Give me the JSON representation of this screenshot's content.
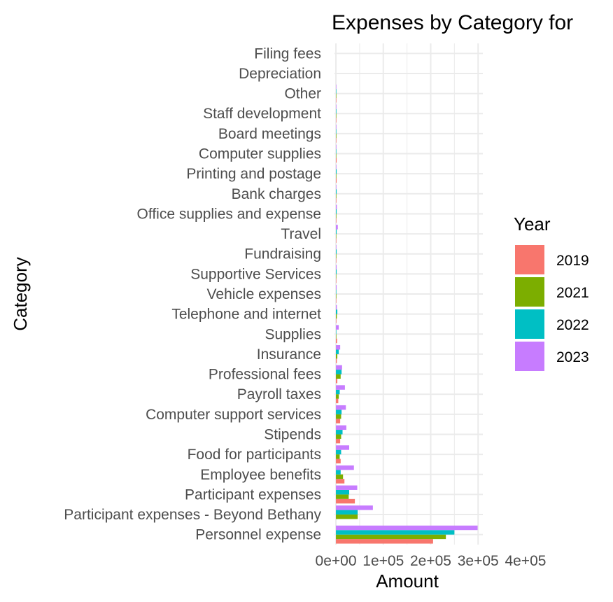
{
  "chart_data": {
    "type": "bar",
    "orientation": "horizontal",
    "title": "Expenses by Category for",
    "xlabel": "Amount",
    "ylabel": "Category",
    "xlim": [
      -3000,
      310000
    ],
    "x_ticks": [
      0,
      100000,
      200000,
      300000,
      400000
    ],
    "x_tick_labels": [
      "0e+00",
      "1e+05",
      "2e+05",
      "3e+05",
      "4e+05"
    ],
    "grid": true,
    "legend": {
      "title": "Year",
      "placement": "right"
    },
    "categories": [
      "Personnel expense",
      "Participant expenses - Beyond Bethany",
      "Participant expenses",
      "Employee benefits",
      "Food for participants",
      "Stipends",
      "Computer support services",
      "Payroll taxes",
      "Professional fees",
      "Insurance",
      "Supplies",
      "Telephone and internet",
      "Vehicle expenses",
      "Supportive Services",
      "Fundraising",
      "Travel",
      "Office supplies and expense",
      "Bank charges",
      "Printing and postage",
      "Computer supplies",
      "Board meetings",
      "Staff development",
      "Other",
      "Depreciation",
      "Filing fees"
    ],
    "series": [
      {
        "name": "2019",
        "color": "#F8766D",
        "values": [
          205000,
          0,
          40000,
          18000,
          10000,
          9000,
          9000,
          5000,
          3000,
          2000,
          2500,
          1000,
          500,
          800,
          500,
          500,
          1000,
          1000,
          1500,
          1500,
          500,
          300,
          200,
          0,
          0
        ]
      },
      {
        "name": "2021",
        "color": "#7CAE00",
        "values": [
          232000,
          46000,
          27000,
          15000,
          8000,
          11000,
          11000,
          6000,
          10000,
          3000,
          1000,
          2000,
          1000,
          500,
          1000,
          500,
          1000,
          1000,
          1000,
          500,
          1000,
          500,
          200,
          0,
          0
        ]
      },
      {
        "name": "2022",
        "color": "#00BFC4",
        "values": [
          250000,
          46000,
          28000,
          10000,
          11000,
          14000,
          12000,
          8000,
          12000,
          6000,
          500,
          3000,
          500,
          1500,
          1500,
          1500,
          1500,
          1500,
          1500,
          500,
          500,
          1000,
          500,
          0,
          0
        ]
      },
      {
        "name": "2023",
        "color": "#C77CFF",
        "values": [
          299000,
          78000,
          45000,
          38000,
          28000,
          22000,
          21000,
          19000,
          13000,
          9000,
          6000,
          2000,
          1500,
          1500,
          1000,
          4000,
          2000,
          1000,
          1000,
          1000,
          1000,
          1000,
          500,
          0,
          0
        ]
      }
    ]
  }
}
